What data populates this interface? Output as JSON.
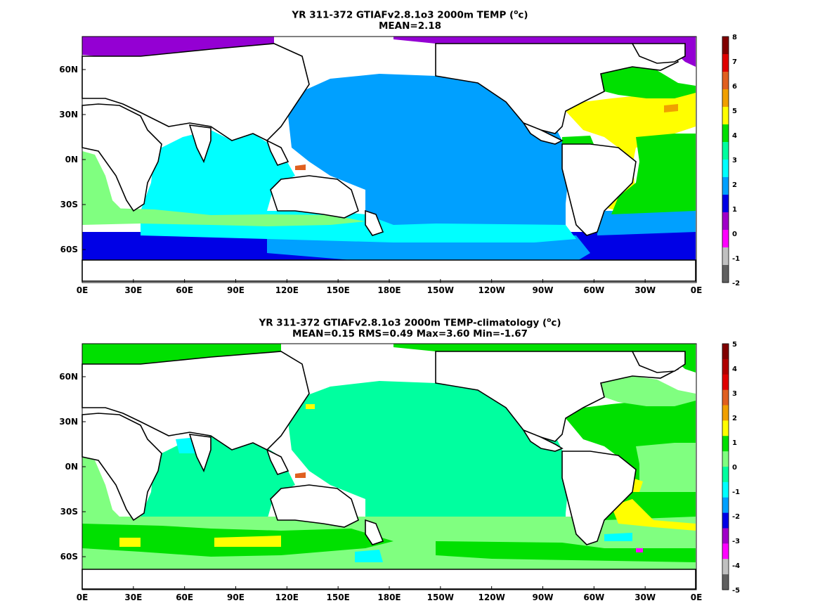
{
  "panels": [
    {
      "title_main": "YR 311-372 GTIAFv2.8.1o3 2000m TEMP (",
      "title_unit": "o",
      "title_end": "c)",
      "subtitle": "MEAN=2.18",
      "colorbar_labels": [
        "8",
        "7",
        "6",
        "5",
        "4",
        "3",
        "2",
        "1",
        "0",
        "-1",
        "-2"
      ],
      "colorbar_colors": [
        "#800000",
        "#e00000",
        "#e06020",
        "#f0a000",
        "#ffff00",
        "#00e000",
        "#00ff9f",
        "#00ffff",
        "#00a0ff",
        "#0000e6",
        "#a000c8",
        "#ff00ff",
        "#c0c0c0",
        "#606060"
      ]
    },
    {
      "title_main": "YR 311-372 GTIAFv2.8.1o3 2000m TEMP-climatology (",
      "title_unit": "o",
      "title_end": "c)",
      "subtitle": "MEAN=0.15   RMS=0.49   Max=3.60   Min=-1.67",
      "colorbar_labels": [
        "5",
        "4",
        "3",
        "2",
        "1",
        "0",
        "-1",
        "-2",
        "-3",
        "-4",
        "-5"
      ],
      "colorbar_colors": [
        "#800000",
        "#b00000",
        "#e00000",
        "#e06020",
        "#f0a000",
        "#ffff00",
        "#00e000",
        "#80ff80",
        "#00ff9f",
        "#00ffff",
        "#00a0ff",
        "#0000e6",
        "#a000c8",
        "#ff00ff",
        "#c0c0c0",
        "#606060"
      ]
    }
  ],
  "axes": {
    "x_ticks": [
      "0E",
      "30E",
      "60E",
      "90E",
      "120E",
      "150E",
      "180E",
      "150W",
      "120W",
      "90W",
      "60W",
      "30W",
      "0E"
    ],
    "y_ticks": [
      "60N",
      "30N",
      "0N",
      "30S",
      "60S"
    ]
  },
  "map_colors": {
    "land": "#ffffff",
    "coast": "#000000",
    "top_arctic": "#9400d3",
    "top_pacific": "#00a0ff",
    "top_indian": "#00ffff",
    "top_atlantic": "#ffff00",
    "top_south": "#0000e6",
    "top_green": "#00e000",
    "top_lightgreen": "#80ff80",
    "bot_green": "#00e000",
    "bot_teal": "#00ff9f",
    "bot_lightgreen": "#80ff80",
    "bot_yellow": "#ffff00"
  }
}
